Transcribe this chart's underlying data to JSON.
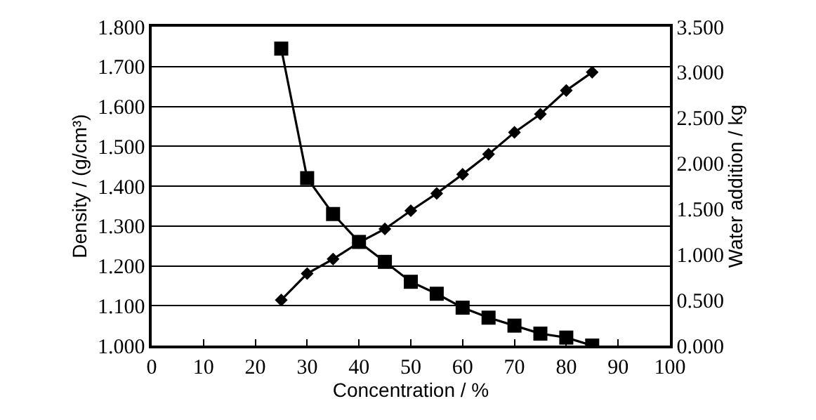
{
  "chart_data": {
    "type": "line",
    "xlabel": "Concentration / %",
    "ylabel": "Density / (g/cm³)",
    "y2label": "Water addition / kg",
    "x": [
      25,
      30,
      35,
      40,
      45,
      50,
      55,
      60,
      65,
      70,
      75,
      80,
      85
    ],
    "series": [
      {
        "color": "#000000",
        "marker": "square",
        "values": [
          1.745,
          1.42,
          1.33,
          1.26,
          1.21,
          1.16,
          1.13,
          1.095,
          1.07,
          1.05,
          1.03,
          1.02,
          1.0
        ]
      },
      {
        "color": "#000000",
        "marker": "diamond",
        "axis": "y2",
        "values": [
          0.5,
          0.79,
          0.95,
          1.13,
          1.28,
          1.48,
          1.67,
          1.88,
          2.1,
          2.34,
          2.54,
          2.8,
          3.0
        ]
      }
    ],
    "xlim": [
      0,
      100
    ],
    "xticks": [
      0,
      10,
      20,
      30,
      40,
      50,
      60,
      70,
      80,
      90,
      100
    ],
    "ylim": [
      1.0,
      1.8
    ],
    "yticks": [
      {
        "value": 1.0,
        "label": "1.000"
      },
      {
        "value": 1.1,
        "label": "1.100"
      },
      {
        "value": 1.2,
        "label": "1.200"
      },
      {
        "value": 1.3,
        "label": "1.300"
      },
      {
        "value": 1.4,
        "label": "1.400"
      },
      {
        "value": 1.5,
        "label": "1.500"
      },
      {
        "value": 1.6,
        "label": "1.600"
      },
      {
        "value": 1.7,
        "label": "1.700"
      },
      {
        "value": 1.8,
        "label": "1.800"
      }
    ],
    "y2lim": [
      0,
      3.5
    ],
    "y2ticks": [
      {
        "value": 0,
        "label": "0.000"
      },
      {
        "value": 0.5,
        "label": "0.500"
      },
      {
        "value": 1.0,
        "label": "1.000"
      },
      {
        "value": 1.5,
        "label": "1.500"
      },
      {
        "value": 2.0,
        "label": "2.000"
      },
      {
        "value": 2.5,
        "label": "2.500"
      },
      {
        "value": 3.0,
        "label": "3.000"
      },
      {
        "value": 3.5,
        "label": "3.500"
      }
    ],
    "grid": "y",
    "line_style": "solid"
  }
}
